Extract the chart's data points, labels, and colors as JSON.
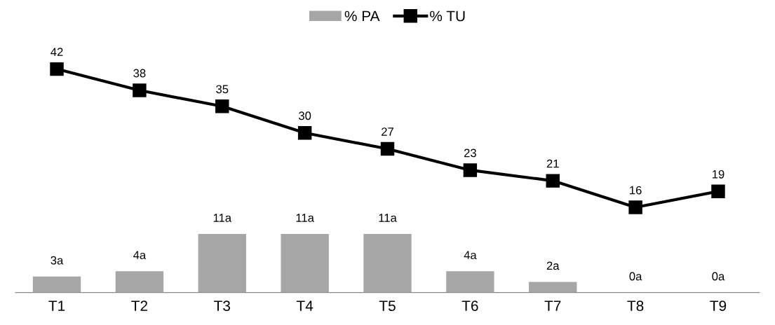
{
  "chart_data": {
    "type": "bar",
    "categories": [
      "T1",
      "T2",
      "T3",
      "T4",
      "T5",
      "T6",
      "T7",
      "T8",
      "T9"
    ],
    "series": [
      {
        "name": "% PA",
        "color": "#a6a6a6",
        "values": [
          3,
          4,
          11,
          11,
          11,
          4,
          2,
          0,
          0
        ],
        "value_labels": [
          "3a",
          "4a",
          "11a",
          "11a",
          "11a",
          "4a",
          "2a",
          "0a",
          "0a"
        ]
      },
      {
        "name": "% TU",
        "type": "line",
        "color": "#000000",
        "marker": "square",
        "line_style": "solid",
        "values": [
          42,
          38,
          35,
          30,
          27,
          23,
          21,
          16,
          19
        ],
        "value_labels": [
          "42",
          "38",
          "35",
          "30",
          "27",
          "23",
          "21",
          "16",
          "19"
        ]
      }
    ],
    "tick_labels": "x",
    "grid": false,
    "legend": "top"
  }
}
